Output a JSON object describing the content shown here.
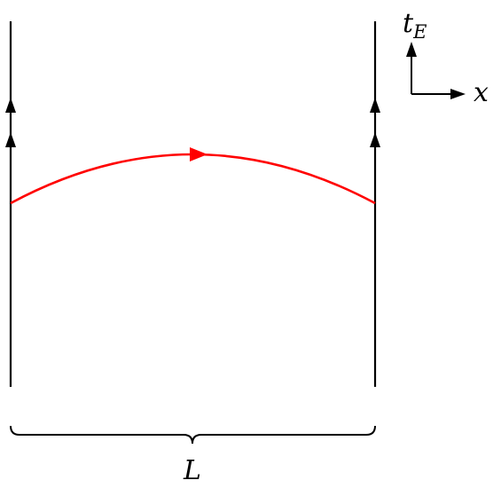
{
  "labels": {
    "time_axis_main": "t",
    "time_axis_sub": "E",
    "space_axis": "x",
    "length": "L"
  },
  "colors": {
    "worldline": "#000000",
    "curve": "#ff0000",
    "axes": "#000000",
    "brace": "#000000"
  }
}
